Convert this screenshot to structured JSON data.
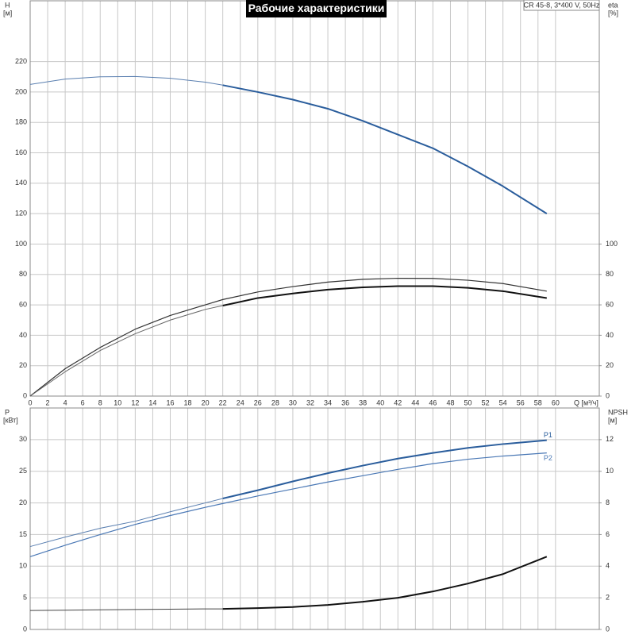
{
  "chart_data": [
    {
      "type": "line",
      "title": "Рабочие характеристики",
      "subtitle": "CR 45-8, 3*400 V, 50Hz",
      "ylabel": "H",
      "yunit": "[м]",
      "y2label": "eta",
      "y2unit": "[%]",
      "xlabel": "Q [м³/ч]",
      "x": [
        0,
        4,
        8,
        12,
        16,
        20,
        22,
        26,
        30,
        34,
        38,
        42,
        46,
        50,
        54,
        59
      ],
      "xlim": [
        0,
        65
      ],
      "xticks": [
        0,
        2,
        4,
        6,
        8,
        10,
        12,
        14,
        16,
        18,
        20,
        22,
        24,
        26,
        28,
        30,
        32,
        34,
        36,
        38,
        40,
        42,
        44,
        46,
        48,
        50,
        52,
        54,
        56,
        58,
        60
      ],
      "show_xtick_labels": true,
      "ylim": [
        0,
        260
      ],
      "yticks": [
        0,
        20,
        40,
        60,
        80,
        100,
        120,
        140,
        160,
        180,
        200,
        220
      ],
      "y2lim": [
        0,
        260
      ],
      "y2ticks": [
        0,
        20,
        40,
        60,
        80,
        100
      ],
      "grid": true,
      "series": [
        {
          "color": "#5a7fb0",
          "width": 1,
          "values": [
            205,
            208.5,
            210,
            210.2,
            209,
            206.5,
            204.5,
            null,
            null,
            null,
            null,
            null,
            null,
            null,
            null,
            null
          ]
        },
        {
          "color": "#2a5d9c",
          "width": 2,
          "values": [
            null,
            null,
            null,
            null,
            null,
            null,
            204.5,
            200,
            195,
            189,
            181,
            172,
            163,
            151,
            138,
            120
          ]
        },
        {
          "color": "#333333",
          "width": 1.2,
          "axis": "y2",
          "values": [
            0,
            18,
            32,
            44,
            53,
            60,
            63.5,
            68.5,
            72,
            75,
            76.8,
            77.5,
            77.4,
            76.2,
            74,
            69
          ]
        },
        {
          "color": "#666666",
          "width": 1,
          "axis": "y2",
          "values": [
            0,
            16,
            30,
            41,
            50,
            57,
            59.5,
            null,
            null,
            null,
            null,
            null,
            null,
            null,
            null,
            null
          ]
        },
        {
          "color": "#111111",
          "width": 2,
          "axis": "y2",
          "values": [
            null,
            null,
            null,
            null,
            null,
            null,
            59.5,
            64.5,
            67.5,
            70,
            71.5,
            72.3,
            72.3,
            71.2,
            69,
            64.5
          ]
        }
      ]
    },
    {
      "type": "line",
      "ylabel": "P",
      "yunit": "[кВт]",
      "y2label": "NPSH",
      "y2unit": "[м]",
      "x": [
        0,
        4,
        8,
        12,
        16,
        20,
        22,
        26,
        30,
        34,
        38,
        42,
        46,
        50,
        54,
        59
      ],
      "xlim": [
        0,
        65
      ],
      "xticks": [
        0,
        2,
        4,
        6,
        8,
        10,
        12,
        14,
        16,
        18,
        20,
        22,
        24,
        26,
        28,
        30,
        32,
        34,
        36,
        38,
        40,
        42,
        44,
        46,
        48,
        50,
        52,
        54,
        56,
        58,
        60
      ],
      "show_xtick_labels": false,
      "ylim": [
        0,
        35
      ],
      "yticks": [
        0,
        5,
        10,
        15,
        20,
        25,
        30
      ],
      "y2lim": [
        0,
        14
      ],
      "y2ticks": [
        0,
        2,
        4,
        6,
        8,
        10,
        12
      ],
      "grid": true,
      "series": [
        {
          "color": "#5a7fb0",
          "width": 1,
          "values": [
            13.1,
            14.6,
            16,
            17.1,
            18.6,
            20,
            20.7,
            null,
            null,
            null,
            null,
            null,
            null,
            null,
            null,
            null
          ]
        },
        {
          "name": "P1",
          "color": "#2a5d9c",
          "width": 2,
          "values": [
            null,
            null,
            null,
            null,
            null,
            null,
            20.7,
            22,
            23.4,
            24.7,
            25.9,
            27,
            27.9,
            28.7,
            29.3,
            29.9
          ]
        },
        {
          "name": "P2",
          "color": "#4a78b5",
          "width": 1.2,
          "values": [
            11.5,
            13.3,
            15,
            16.6,
            18,
            19.3,
            19.9,
            21.1,
            22.2,
            23.3,
            24.3,
            25.3,
            26.2,
            26.9,
            27.4,
            27.9
          ]
        },
        {
          "color": "#444444",
          "width": 1,
          "axis": "y2",
          "values": [
            1.2,
            1.22,
            1.24,
            1.26,
            1.28,
            1.3,
            1.3,
            null,
            null,
            null,
            null,
            null,
            null,
            null,
            null,
            null
          ]
        },
        {
          "color": "#111111",
          "width": 2,
          "axis": "y2",
          "values": [
            null,
            null,
            null,
            null,
            null,
            null,
            1.3,
            1.35,
            1.42,
            1.55,
            1.75,
            2.0,
            2.4,
            2.9,
            3.5,
            4.6
          ]
        }
      ]
    }
  ]
}
